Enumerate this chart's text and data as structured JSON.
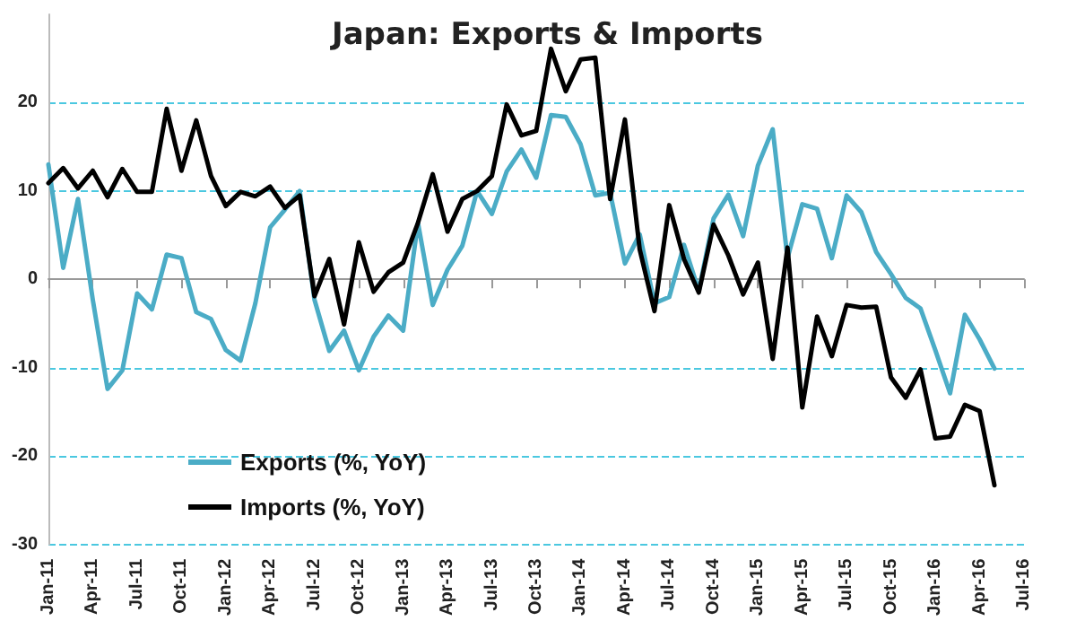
{
  "chart_data": {
    "type": "line",
    "title": "Japan: Exports & Imports",
    "categories": [
      "Jan-11",
      null,
      null,
      "Apr-11",
      null,
      null,
      "Jul-11",
      null,
      null,
      "Oct-11",
      null,
      null,
      "Jan-12",
      null,
      null,
      "Apr-12",
      null,
      null,
      "Jul-12",
      null,
      null,
      "Oct-12",
      null,
      null,
      "Jan-13",
      null,
      null,
      "Apr-13",
      null,
      null,
      "Jul-13",
      null,
      null,
      "Oct-13",
      null,
      null,
      "Jan-14",
      null,
      null,
      "Apr-14",
      null,
      null,
      "Jul-14",
      null,
      null,
      "Oct-14",
      null,
      null,
      "Jan-15",
      null,
      null,
      "Apr-15",
      null,
      null,
      "Jul-15",
      null,
      null,
      "Oct-15",
      null,
      null,
      "Jan-16",
      null,
      null,
      "Apr-16",
      null,
      null,
      "Jul-16"
    ],
    "series": [
      {
        "name": "Exports (%, YoY)",
        "color": "#4bacc6",
        "values": [
          13,
          1.3,
          9.1,
          -2.3,
          -12.4,
          -10.3,
          -1.6,
          -3.4,
          2.8,
          2.4,
          -3.7,
          -4.5,
          -8,
          -9.2,
          -2.7,
          5.9,
          7.9,
          10,
          -2.3,
          -8.1,
          -5.8,
          -10.3,
          -6.5,
          -4.1,
          -5.8,
          6.4,
          -2.9,
          1.1,
          3.8,
          10,
          7.4,
          12.2,
          14.7,
          11.5,
          18.6,
          18.4,
          15.3,
          9.5,
          9.8,
          1.8,
          5.1,
          -2.7,
          -2,
          3.9,
          -1.3,
          6.9,
          9.6,
          4.9,
          12.9,
          17,
          2.4,
          8.5,
          8,
          2.4,
          9.5,
          7.6,
          3.1,
          0.6,
          -2.1,
          -3.3,
          -8,
          -12.9,
          -4,
          -6.8,
          -10.1,
          null,
          null
        ]
      },
      {
        "name": "Imports (%, YoY)",
        "color": "#000000",
        "values": [
          10.9,
          12.6,
          10.3,
          12.3,
          9.3,
          12.5,
          9.9,
          9.9,
          19.3,
          12.3,
          18,
          11.7,
          8.3,
          9.9,
          9.4,
          10.5,
          8.1,
          9.5,
          -1.9,
          2.3,
          -5.1,
          4.2,
          -1.4,
          0.8,
          1.9,
          6.4,
          11.9,
          5.4,
          9.1,
          10,
          11.7,
          19.8,
          16.3,
          16.8,
          26.1,
          21.3,
          24.9,
          25.1,
          9.1,
          18.1,
          3.4,
          -3.6,
          8.4,
          2.3,
          -1.5,
          6.2,
          2.7,
          -1.7,
          1.9,
          -9,
          3.6,
          -14.5,
          -4.2,
          -8.7,
          -2.9,
          -3.2,
          -3.1,
          -11.1,
          -13.4,
          -10.2,
          -18,
          -17.8,
          -14.2,
          -14.9,
          -23.3,
          null,
          null
        ]
      }
    ],
    "ylim": [
      -30,
      30
    ],
    "yticks": [
      -30,
      -20,
      -10,
      0,
      10,
      20
    ],
    "grid": "y",
    "legend": "bottom left",
    "marker": "none",
    "line_style": "solid"
  }
}
